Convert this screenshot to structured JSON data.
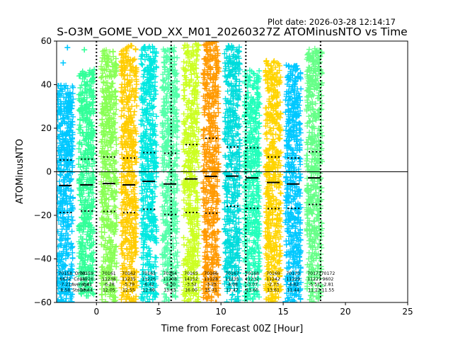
{
  "plot_date": "Plot date: 2026-03-28 12:14:17",
  "chart_data": {
    "type": "scatter",
    "title": "S-O3M_GOME_VOD_XX_M01_20260327Z ATOMinusNTO vs Time",
    "xlabel": "Time from Forecast 00Z [Hour]",
    "ylabel": "ATOMinusNTO",
    "xlim": [
      -3.2,
      25
    ],
    "ylim": [
      -60,
      60
    ],
    "xticks": [
      0,
      5,
      10,
      15,
      20,
      25
    ],
    "yticks": [
      -60,
      -40,
      -20,
      0,
      20,
      40,
      60
    ],
    "zero_line": 0,
    "marker": "+",
    "vlines": [
      0,
      6,
      12,
      18
    ],
    "orbits": [
      {
        "x": -2.5,
        "orbit": "70158",
        "count": "6672",
        "mean": -6.3,
        "p_low": -18.7,
        "p_high": 5.4,
        "lo": -60,
        "hi": 40,
        "outliers": [
          50,
          57
        ],
        "stats": [
          "70158",
          "6672",
          "-7.21",
          "8.58"
        ],
        "color": "#00c8ff"
      },
      {
        "x": -0.8,
        "orbit": "70159",
        "count": "11226",
        "mean": -6.0,
        "p_low": -18.0,
        "p_high": 5.8,
        "lo": -57,
        "hi": 47,
        "outliers": [
          56
        ],
        "stats": [
          "70159",
          "11226",
          "-7.41",
          "13.44"
        ],
        "color": "#33ff99"
      },
      {
        "x": 1.0,
        "orbit": "70161",
        "count": "11238",
        "mean": -5.4,
        "p_low": -18.2,
        "p_high": 6.8,
        "lo": -60,
        "hi": 56,
        "outliers": [],
        "stats": [
          "70161",
          "11238",
          "-6.28",
          "12.05"
        ],
        "color": "#88ff55"
      },
      {
        "x": 2.6,
        "orbit": "70162",
        "count": "11235",
        "mean": -6.0,
        "p_low": -18.8,
        "p_high": 6.3,
        "lo": -60,
        "hi": 58,
        "outliers": [],
        "stats": [
          "70162",
          "11235",
          "-5.79",
          "12.55"
        ],
        "color": "#ffcc00"
      },
      {
        "x": 4.2,
        "orbit": "70163",
        "count": "11226",
        "mean": -4.4,
        "p_low": -17.2,
        "p_high": 8.8,
        "lo": -60,
        "hi": 58,
        "outliers": [],
        "stats": [
          "70163",
          "11226",
          "-6.42",
          "12.66"
        ],
        "color": "#00e8e0"
      },
      {
        "x": 5.9,
        "orbit": "70164",
        "count": "11208",
        "mean": -5.6,
        "p_low": -19.6,
        "p_high": 8.5,
        "lo": -60,
        "hi": 57,
        "outliers": [],
        "stats": [
          "70164",
          "11208",
          "-4.30",
          "13.15"
        ],
        "color": "#55ffaa"
      },
      {
        "x": 7.6,
        "orbit": "70165",
        "count": "14152",
        "mean": -3.3,
        "p_low": -18.7,
        "p_high": 12.5,
        "lo": -60,
        "hi": 59,
        "outliers": [],
        "stats": [
          "70165",
          "14152",
          "-3.52",
          "16.00"
        ],
        "color": "#ccff22"
      },
      {
        "x": 9.2,
        "orbit": "70166",
        "count": "11128",
        "mean": -2.1,
        "p_low": -19.0,
        "p_high": 15.4,
        "lo": -60,
        "hi": 60,
        "outliers": [],
        "stats": [
          "70166",
          "11128",
          "-3.25",
          "15.71"
        ],
        "color": "#ff9900"
      },
      {
        "x": 10.9,
        "orbit": "70167",
        "count": "11235",
        "mean": -2.0,
        "p_low": -15.8,
        "p_high": 11.4,
        "lo": -60,
        "hi": 58,
        "outliers": [
          44
        ],
        "stats": [
          "70167",
          "11235",
          "-4.08",
          "17.47"
        ],
        "color": "#00dcdc"
      },
      {
        "x": 12.5,
        "orbit": "70168",
        "count": "11232",
        "mean": -2.8,
        "p_low": -16.8,
        "p_high": 11.0,
        "lo": -60,
        "hi": 47,
        "outliers": [],
        "stats": [
          "70168",
          "11232",
          "-3.07",
          "13.60"
        ],
        "color": "#22ffbb"
      },
      {
        "x": 14.2,
        "orbit": "70169",
        "count": "11242",
        "mean": -4.9,
        "p_low": -16.9,
        "p_high": 6.8,
        "lo": -60,
        "hi": 51,
        "outliers": [],
        "stats": [
          "70169",
          "11242",
          "-2.73",
          "13.61"
        ],
        "color": "#ffd400"
      },
      {
        "x": 15.8,
        "orbit": "70170",
        "count": "11229",
        "mean": -5.6,
        "p_low": -16.8,
        "p_high": 6.3,
        "lo": -60,
        "hi": 49,
        "outliers": [],
        "stats": [
          "70170",
          "11229",
          "-4.82",
          "11.44"
        ],
        "color": "#00c8ff"
      },
      {
        "x": 17.5,
        "orbit": "70171",
        "count": "11227",
        "mean": -2.8,
        "p_low": -15.0,
        "p_high": 9.2,
        "lo": -60,
        "hi": 57,
        "outliers": [],
        "stats": [
          "70171",
          "11227",
          "-5.57",
          "11.23"
        ],
        "color": "#66ff88"
      }
    ],
    "extra_stats": [
      {
        "x": -1.3,
        "lines": [
          "Orbit",
          "Count",
          "Average",
          "StdDev"
        ]
      },
      {
        "x": 18.6,
        "lines": [
          "70172",
          "9602",
          "-2.81",
          "11.55"
        ]
      }
    ]
  }
}
